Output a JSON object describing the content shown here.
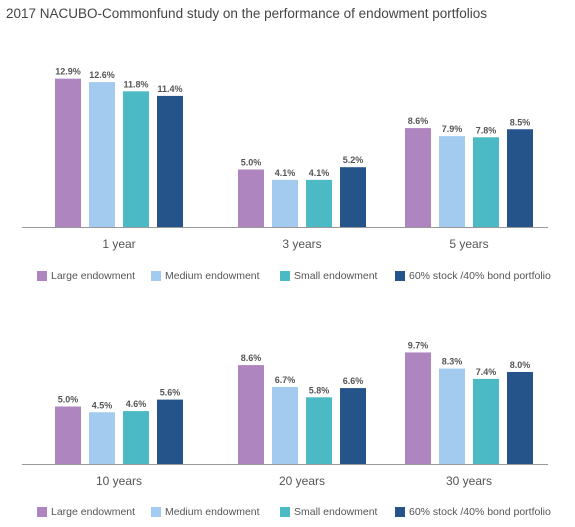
{
  "title": "2017 NACUBO-Commonfund study on the performance of endowment portfolios",
  "colors": {
    "large": "#ae85bf",
    "medium": "#a3cbf0",
    "small": "#4bbac4",
    "portfolio": "#24548a",
    "axis": "#999999",
    "text": "#555555"
  },
  "legend": [
    {
      "label": "Large endowment",
      "color": "#ae85bf"
    },
    {
      "label": "Medium endowment",
      "color": "#a3cbf0"
    },
    {
      "label": "Small endowment",
      "color": "#4bbac4"
    },
    {
      "label": "60% stock /40% bond portfolio",
      "color": "#24548a"
    }
  ],
  "chart_data": [
    {
      "type": "bar",
      "title": "",
      "categories": [
        "1 year",
        "3 years",
        "5 years"
      ],
      "series": [
        {
          "name": "Large endowment",
          "values": [
            12.9,
            5.0,
            8.6
          ],
          "labels": [
            "12.9%",
            "5.0%",
            "8.6%"
          ]
        },
        {
          "name": "Medium endowment",
          "values": [
            12.6,
            4.1,
            7.9
          ],
          "labels": [
            "12.6%",
            "4.1%",
            "7.9%"
          ]
        },
        {
          "name": "Small endowment",
          "values": [
            11.8,
            4.1,
            7.8
          ],
          "labels": [
            "11.8%",
            "4.1%",
            "7.8%"
          ]
        },
        {
          "name": "60% stock /40% bond portfolio",
          "values": [
            11.4,
            5.2,
            8.5
          ],
          "labels": [
            "11.4%",
            "5.2%",
            "8.5%"
          ]
        }
      ],
      "xlabel": "",
      "ylabel": "",
      "ylim": [
        0,
        14
      ],
      "grid": false,
      "legend_position": "bottom"
    },
    {
      "type": "bar",
      "title": "",
      "categories": [
        "10 years",
        "20 years",
        "30 years"
      ],
      "series": [
        {
          "name": "Large endowment",
          "values": [
            5.0,
            8.6,
            9.7
          ],
          "labels": [
            "5.0%",
            "8.6%",
            "9.7%"
          ]
        },
        {
          "name": "Medium endowment",
          "values": [
            4.5,
            6.7,
            8.3
          ],
          "labels": [
            "4.5%",
            "6.7%",
            "8.3%"
          ]
        },
        {
          "name": "Small endowment",
          "values": [
            4.6,
            5.8,
            7.4
          ],
          "labels": [
            "4.6%",
            "5.8%",
            "7.4%"
          ]
        },
        {
          "name": "60% stock /40% bond portfolio",
          "values": [
            5.6,
            6.6,
            8.0
          ],
          "labels": [
            "5.6%",
            "6.6%",
            "8.0%"
          ]
        }
      ],
      "xlabel": "",
      "ylabel": "",
      "ylim": [
        0,
        14
      ],
      "grid": false,
      "legend_position": "bottom"
    }
  ]
}
